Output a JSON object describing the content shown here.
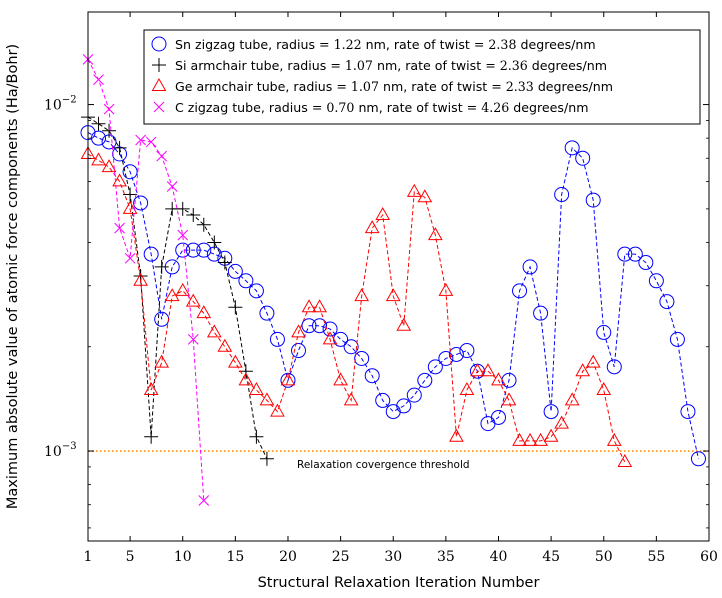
{
  "chart_data": {
    "type": "line",
    "title": "",
    "xlabel": "Structural Relaxation Iteration Number",
    "ylabel": "Maximum absolute value of atomic force components (Ha/Bohr)",
    "xlim": [
      1,
      60
    ],
    "ylim": [
      0.00055,
      0.0185
    ],
    "yscale": "log",
    "x_ticks": [
      1,
      5,
      10,
      15,
      20,
      25,
      30,
      35,
      40,
      45,
      50,
      55,
      60
    ],
    "y_ticks": [
      {
        "value": 0.001,
        "label_base": "10",
        "label_exp": "−3"
      },
      {
        "value": 0.01,
        "label_base": "10",
        "label_exp": "−2"
      }
    ],
    "grid": false,
    "legend_position": "top-right",
    "threshold": {
      "value": 0.001,
      "label": "Relaxation covergence threshold",
      "color": "#ff8c00"
    },
    "series": [
      {
        "name": "Sn zigzag tube, radius = 1.22 nm, rate of twist = 2.38 degrees/nm",
        "label_parts": [
          "Sn zigzag tube, radius ",
          "= 1.22",
          " nm, rate of twist ",
          "= 2.38",
          " degrees/nm"
        ],
        "color": "#0000ff",
        "marker": "circle",
        "x": [
          1,
          2,
          3,
          4,
          5,
          6,
          7,
          8,
          9,
          10,
          11,
          12,
          13,
          14,
          15,
          16,
          17,
          18,
          19,
          20,
          21,
          22,
          23,
          24,
          25,
          26,
          27,
          28,
          29,
          30,
          31,
          32,
          33,
          34,
          35,
          36,
          37,
          38,
          39,
          40,
          41,
          42,
          43,
          44,
          45,
          46,
          47,
          48,
          49,
          50,
          51,
          52,
          53,
          54,
          55,
          56,
          57,
          58,
          59
        ],
        "y": [
          0.0083,
          0.008,
          0.0078,
          0.0072,
          0.0064,
          0.0052,
          0.0037,
          0.0024,
          0.0034,
          0.0038,
          0.0038,
          0.0038,
          0.0037,
          0.0036,
          0.0033,
          0.0031,
          0.0029,
          0.0025,
          0.0021,
          0.0016,
          0.00195,
          0.0023,
          0.0023,
          0.00225,
          0.0021,
          0.002,
          0.00185,
          0.00165,
          0.0014,
          0.0013,
          0.00135,
          0.00145,
          0.0016,
          0.00175,
          0.00185,
          0.0019,
          0.00195,
          0.0017,
          0.0012,
          0.00125,
          0.0016,
          0.0029,
          0.0034,
          0.0025,
          0.0013,
          0.0055,
          0.0075,
          0.007,
          0.0053,
          0.0022,
          0.00175,
          0.0037,
          0.0037,
          0.0035,
          0.0031,
          0.0027,
          0.0021,
          0.0013,
          0.00095
        ]
      },
      {
        "name": "Si armchair tube, radius = 1.07 nm, rate of twist = 2.36 degrees/nm",
        "label_parts": [
          "Si armchair tube, radius ",
          "= 1.07",
          " nm, rate of twist ",
          "= 2.36",
          " degrees/nm"
        ],
        "color": "#000000",
        "marker": "plus",
        "x": [
          1,
          2,
          3,
          4,
          5,
          6,
          7,
          8,
          9,
          10,
          11,
          12,
          13,
          14,
          15,
          16,
          17,
          18
        ],
        "y": [
          0.0092,
          0.0088,
          0.0084,
          0.0075,
          0.0055,
          0.0032,
          0.0011,
          0.0034,
          0.005,
          0.005,
          0.0048,
          0.0045,
          0.004,
          0.0035,
          0.0026,
          0.0017,
          0.0011,
          0.00095
        ]
      },
      {
        "name": "Ge armchair tube, radius = 1.07 nm, rate of twist = 2.33 degrees/nm",
        "label_parts": [
          "Ge armchair tube, radius ",
          "= 1.07",
          " nm, rate of twist ",
          "= 2.33",
          " degrees/nm"
        ],
        "color": "#ff0000",
        "marker": "triangle",
        "x": [
          1,
          2,
          3,
          4,
          5,
          6,
          7,
          8,
          9,
          10,
          11,
          12,
          13,
          14,
          15,
          16,
          17,
          18,
          19,
          20,
          21,
          22,
          23,
          24,
          25,
          26,
          27,
          28,
          29,
          30,
          31,
          32,
          33,
          34,
          35,
          36,
          37,
          38,
          39,
          40,
          41,
          42,
          43,
          44,
          45,
          46,
          47,
          48,
          49,
          50,
          51,
          52
        ],
        "y": [
          0.0072,
          0.0069,
          0.0066,
          0.006,
          0.005,
          0.0031,
          0.0015,
          0.0018,
          0.0028,
          0.0029,
          0.0027,
          0.0025,
          0.0022,
          0.002,
          0.0018,
          0.0016,
          0.0015,
          0.0014,
          0.0013,
          0.0016,
          0.0022,
          0.0026,
          0.0026,
          0.0021,
          0.0016,
          0.0014,
          0.0028,
          0.0044,
          0.0048,
          0.0028,
          0.0023,
          0.0056,
          0.0054,
          0.0042,
          0.0029,
          0.0011,
          0.0015,
          0.0017,
          0.0017,
          0.0016,
          0.0014,
          0.00107,
          0.00107,
          0.00107,
          0.0011,
          0.0012,
          0.0014,
          0.0017,
          0.0018,
          0.0015,
          0.00107,
          0.00093
        ]
      },
      {
        "name": "C zigzag tube, radius = 0.70 nm, rate of twist = 4.26 degrees/nm",
        "label_parts": [
          "C  zigzag tube, radius ",
          "= 0.70",
          " nm, rate of twist ",
          "= 4.26",
          " degrees/nm"
        ],
        "color": "#ff00ff",
        "marker": "x",
        "x": [
          1,
          2,
          3,
          4,
          5,
          6,
          7,
          8,
          9,
          10,
          11,
          12
        ],
        "y": [
          0.0135,
          0.0118,
          0.0097,
          0.0044,
          0.0036,
          0.0079,
          0.0078,
          0.0071,
          0.0058,
          0.0042,
          0.0021,
          0.00072
        ]
      }
    ]
  }
}
